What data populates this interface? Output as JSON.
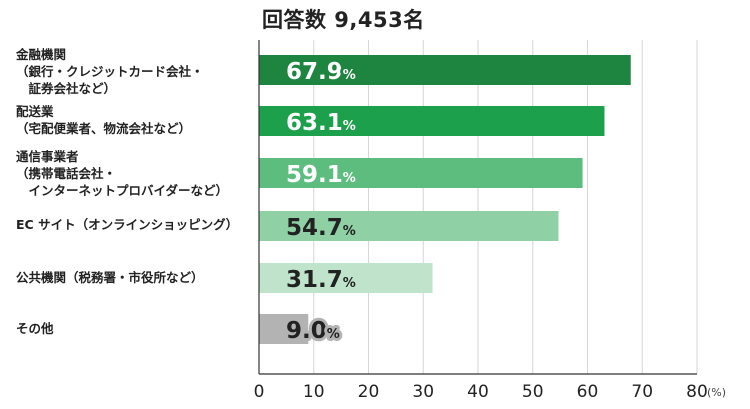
{
  "chart_data": {
    "type": "bar",
    "orientation": "horizontal",
    "title": "回答数 9,453名",
    "categories": [
      "金融機関\n（銀行・クレジットカード会社・\n　証券会社など）",
      "配送業\n（宅配便業者、物流会社など）",
      "通信事業者\n（携帯電話会社・\n　インターネットプロバイダーなど）",
      "EC サイト（オンラインショッピング）",
      "公共機関（税務署・市役所など）",
      "その他"
    ],
    "values": [
      67.9,
      63.1,
      59.1,
      54.7,
      31.7,
      9.0
    ],
    "value_labels": [
      "67.9",
      "63.1",
      "59.1",
      "54.7",
      "31.7",
      "9.0"
    ],
    "value_suffix": "%",
    "xlim": [
      0,
      80
    ],
    "xticks": [
      "0",
      "10",
      "20",
      "30",
      "40",
      "50",
      "60",
      "70",
      "80"
    ],
    "xunit": "(%)",
    "grid": true,
    "colors": [
      "#1e8540",
      "#1ca04b",
      "#5dbd7f",
      "#8fd0a5",
      "#bfe3cb",
      "#b3b3b3"
    ],
    "label_outline_colors": [
      "#1e8540",
      "#1ca04b",
      "#5dbd7f",
      "#8fd0a5",
      "#bfe3cb",
      "#b3b3b3"
    ],
    "label_fill_colors": [
      "#ffffff",
      "#ffffff",
      "#ffffff",
      "#222222",
      "#222222",
      "#222222"
    ]
  }
}
